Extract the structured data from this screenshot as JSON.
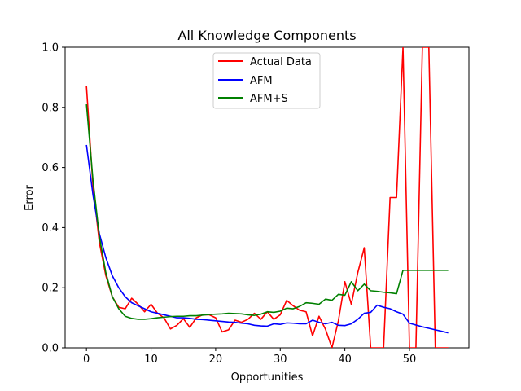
{
  "chart_data": {
    "type": "line",
    "title": "All Knowledge Components",
    "xlabel": "Opportunities",
    "ylabel": "Error",
    "xlim": [
      -3.3,
      59.2
    ],
    "ylim": [
      0,
      1.0
    ],
    "xticks": [
      0,
      10,
      20,
      30,
      40,
      50
    ],
    "yticks": [
      0.0,
      0.2,
      0.4,
      0.6,
      0.8,
      1.0
    ],
    "xtick_labels": [
      "0",
      "10",
      "20",
      "30",
      "40",
      "50"
    ],
    "ytick_labels": [
      "0.0",
      "0.2",
      "0.4",
      "0.6",
      "0.8",
      "1.0"
    ],
    "grid": false,
    "legend_position": "top-center",
    "series": [
      {
        "name": "Actual Data",
        "color": "#ff0000",
        "x": [
          0,
          1,
          2,
          3,
          4,
          5,
          6,
          7,
          8,
          9,
          10,
          11,
          12,
          13,
          14,
          15,
          16,
          17,
          18,
          19,
          20,
          21,
          22,
          23,
          24,
          25,
          26,
          27,
          28,
          29,
          30,
          31,
          32,
          33,
          34,
          35,
          36,
          37,
          38,
          39,
          40,
          41,
          42,
          43,
          44,
          45,
          46,
          47,
          48,
          49,
          50,
          51,
          52,
          53,
          54,
          55,
          56
        ],
        "y": [
          0.87,
          0.54,
          0.35,
          0.24,
          0.17,
          0.135,
          0.13,
          0.165,
          0.145,
          0.12,
          0.145,
          0.115,
          0.1,
          0.063,
          0.075,
          0.097,
          0.068,
          0.1,
          0.11,
          0.11,
          0.1,
          0.053,
          0.06,
          0.092,
          0.085,
          0.095,
          0.115,
          0.095,
          0.12,
          0.095,
          0.11,
          0.158,
          0.14,
          0.125,
          0.12,
          0.04,
          0.105,
          0.062,
          0.0,
          0.09,
          0.22,
          0.145,
          0.25,
          0.333,
          0.0,
          0.0,
          0.0,
          0.5,
          0.5,
          1.0,
          0.0,
          0.0,
          1.0,
          1.0,
          0.0,
          0.0,
          0.0
        ]
      },
      {
        "name": "AFM",
        "color": "#0000ff",
        "x": [
          0,
          1,
          2,
          3,
          4,
          5,
          6,
          7,
          8,
          9,
          10,
          11,
          12,
          13,
          14,
          15,
          16,
          17,
          18,
          19,
          20,
          21,
          22,
          23,
          24,
          25,
          26,
          27,
          28,
          29,
          30,
          31,
          32,
          33,
          34,
          35,
          36,
          37,
          38,
          39,
          40,
          41,
          42,
          43,
          44,
          45,
          46,
          47,
          48,
          49,
          50,
          51,
          52,
          53,
          54,
          55,
          56
        ],
        "y": [
          0.675,
          0.51,
          0.38,
          0.3,
          0.24,
          0.2,
          0.17,
          0.15,
          0.14,
          0.13,
          0.12,
          0.115,
          0.11,
          0.105,
          0.1,
          0.1,
          0.098,
          0.095,
          0.094,
          0.092,
          0.09,
          0.088,
          0.086,
          0.085,
          0.082,
          0.08,
          0.075,
          0.073,
          0.072,
          0.08,
          0.078,
          0.083,
          0.082,
          0.08,
          0.08,
          0.092,
          0.085,
          0.08,
          0.085,
          0.075,
          0.074,
          0.08,
          0.095,
          0.115,
          0.118,
          0.142,
          0.135,
          0.13,
          0.12,
          0.112,
          0.082,
          0.076,
          0.07,
          0.065,
          0.06,
          0.055,
          0.05
        ]
      },
      {
        "name": "AFM+S",
        "color": "#008000",
        "x": [
          0,
          1,
          2,
          3,
          4,
          5,
          6,
          7,
          8,
          9,
          10,
          11,
          12,
          13,
          14,
          15,
          16,
          17,
          18,
          19,
          20,
          21,
          22,
          23,
          24,
          25,
          26,
          27,
          28,
          29,
          30,
          31,
          32,
          33,
          34,
          35,
          36,
          37,
          38,
          39,
          40,
          41,
          42,
          43,
          44,
          45,
          46,
          47,
          48,
          49,
          50,
          51,
          52,
          53,
          54,
          55,
          56
        ],
        "y": [
          0.81,
          0.56,
          0.37,
          0.25,
          0.17,
          0.13,
          0.105,
          0.098,
          0.095,
          0.095,
          0.097,
          0.1,
          0.102,
          0.104,
          0.105,
          0.105,
          0.107,
          0.107,
          0.109,
          0.111,
          0.112,
          0.113,
          0.115,
          0.114,
          0.113,
          0.11,
          0.108,
          0.112,
          0.12,
          0.118,
          0.122,
          0.132,
          0.13,
          0.138,
          0.15,
          0.148,
          0.145,
          0.162,
          0.158,
          0.178,
          0.175,
          0.22,
          0.19,
          0.212,
          0.19,
          0.188,
          0.185,
          0.183,
          0.18,
          0.258,
          0.258,
          0.258,
          0.258,
          0.258,
          0.258,
          0.258,
          0.258
        ]
      }
    ]
  }
}
